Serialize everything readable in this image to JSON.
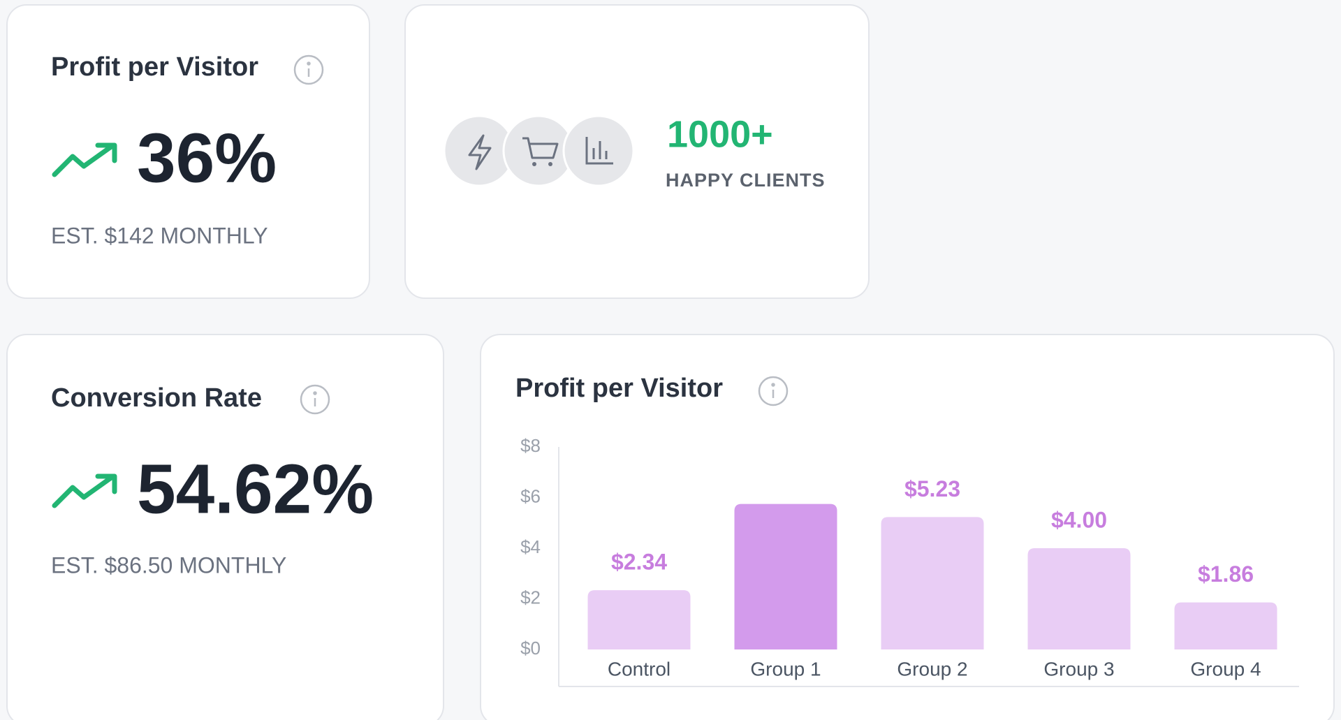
{
  "cards": [
    {
      "title": "Profit per Visitor",
      "value": "36%",
      "note": "EST. $142 MONTHLY"
    },
    {
      "headline": "1000+",
      "caption": "HAPPY CLIENTS"
    },
    {
      "title": "Conversion Rate",
      "value": "54.62%",
      "note": "EST. $86.50 MONTHLY"
    }
  ],
  "chart_data": {
    "type": "bar",
    "title": "Profit per Visitor",
    "categories": [
      "Control",
      "Group 1",
      "Group 2",
      "Group 3",
      "Group 4"
    ],
    "values": [
      2.34,
      5.75,
      5.23,
      4.0,
      1.86
    ],
    "value_labels": [
      "$2.34",
      null,
      "$5.23",
      "$4.00",
      "$1.86"
    ],
    "colors": [
      "#e9cdf5",
      "#d39bec",
      "#e9cdf5",
      "#e9cdf5",
      "#e9cdf5"
    ],
    "label_color": "#c77dde",
    "ylim": [
      0,
      8
    ],
    "yticks": [
      {
        "value": 0,
        "label": "$0"
      },
      {
        "value": 2,
        "label": "$2"
      },
      {
        "value": 4,
        "label": "$4"
      },
      {
        "value": 6,
        "label": "$6"
      },
      {
        "value": 8,
        "label": "$8"
      }
    ]
  }
}
